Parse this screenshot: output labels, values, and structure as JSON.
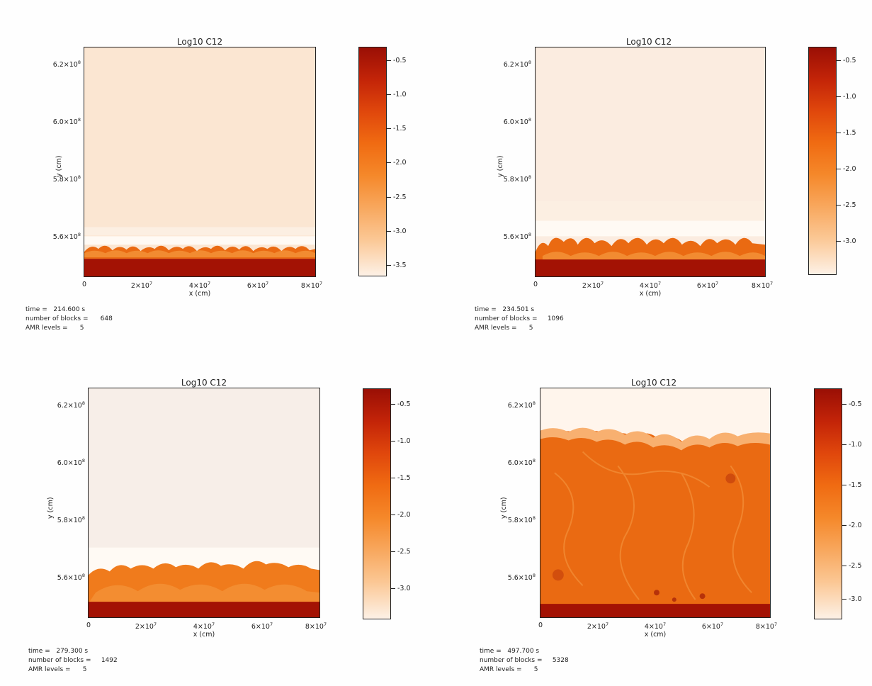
{
  "panels": [
    {
      "title": "Log10 C12",
      "y_ticks": [
        {
          "m": "6.2",
          "e": "8"
        },
        {
          "m": "6.0",
          "e": "8"
        },
        {
          "m": "5.8",
          "e": "8"
        },
        {
          "m": "5.6",
          "e": "8"
        }
      ],
      "x_ticks": [
        {
          "m": "0",
          "e": ""
        },
        {
          "m": "2",
          "e": "7"
        },
        {
          "m": "4",
          "e": "7"
        },
        {
          "m": "6",
          "e": "7"
        },
        {
          "m": "8",
          "e": "7"
        }
      ],
      "xlabel": "x (cm)",
      "ylabel": "y (cm)",
      "cbar_ticks": [
        "-0.5",
        "-1.0",
        "-1.5",
        "-2.0",
        "-2.5",
        "-3.0",
        "-3.5"
      ],
      "info": {
        "time_label": "time =",
        "time_value": "214.600 s",
        "blocks_label": "number of blocks =",
        "blocks_value": "648",
        "amr_label": "AMR levels =",
        "amr_value": "5"
      }
    },
    {
      "title": "Log10 C12",
      "y_ticks": [
        {
          "m": "6.2",
          "e": "8"
        },
        {
          "m": "6.0",
          "e": "8"
        },
        {
          "m": "5.8",
          "e": "8"
        },
        {
          "m": "5.6",
          "e": "8"
        }
      ],
      "x_ticks": [
        {
          "m": "0",
          "e": ""
        },
        {
          "m": "2",
          "e": "7"
        },
        {
          "m": "4",
          "e": "7"
        },
        {
          "m": "6",
          "e": "7"
        },
        {
          "m": "8",
          "e": "7"
        }
      ],
      "xlabel": "x (cm)",
      "ylabel": "y (cm)",
      "cbar_ticks": [
        "-0.5",
        "-1.0",
        "-1.5",
        "-2.0",
        "-2.5",
        "-3.0"
      ],
      "info": {
        "time_label": "time =",
        "time_value": "234.501 s",
        "blocks_label": "number of blocks =",
        "blocks_value": "1096",
        "amr_label": "AMR levels =",
        "amr_value": "5"
      }
    },
    {
      "title": "Log10 C12",
      "y_ticks": [
        {
          "m": "6.2",
          "e": "8"
        },
        {
          "m": "6.0",
          "e": "8"
        },
        {
          "m": "5.8",
          "e": "8"
        },
        {
          "m": "5.6",
          "e": "8"
        }
      ],
      "x_ticks": [
        {
          "m": "0",
          "e": ""
        },
        {
          "m": "2",
          "e": "7"
        },
        {
          "m": "4",
          "e": "7"
        },
        {
          "m": "6",
          "e": "7"
        },
        {
          "m": "8",
          "e": "7"
        }
      ],
      "xlabel": "x (cm)",
      "ylabel": "y (cm)",
      "cbar_ticks": [
        "-0.5",
        "-1.0",
        "-1.5",
        "-2.0",
        "-2.5",
        "-3.0"
      ],
      "info": {
        "time_label": "time =",
        "time_value": "279.300 s",
        "blocks_label": "number of blocks =",
        "blocks_value": "1492",
        "amr_label": "AMR levels =",
        "amr_value": "5"
      }
    },
    {
      "title": "Log10 C12",
      "y_ticks": [
        {
          "m": "6.2",
          "e": "8"
        },
        {
          "m": "6.0",
          "e": "8"
        },
        {
          "m": "5.8",
          "e": "8"
        },
        {
          "m": "5.6",
          "e": "8"
        }
      ],
      "x_ticks": [
        {
          "m": "0",
          "e": ""
        },
        {
          "m": "2",
          "e": "7"
        },
        {
          "m": "4",
          "e": "7"
        },
        {
          "m": "6",
          "e": "7"
        },
        {
          "m": "8",
          "e": "7"
        }
      ],
      "xlabel": "x (cm)",
      "ylabel": "y (cm)",
      "cbar_ticks": [
        "-0.5",
        "-1.0",
        "-1.5",
        "-2.0",
        "-2.5",
        "-3.0"
      ],
      "info": {
        "time_label": "time =",
        "time_value": "497.700 s",
        "blocks_label": "number of blocks =",
        "blocks_value": "5328",
        "amr_label": "AMR levels =",
        "amr_value": "5"
      }
    }
  ],
  "colors": {
    "dark_red": "#a31204",
    "orange": "#ea6a12",
    "light_orange": "#f59a3f",
    "cream": "#fbe6d2",
    "pale": "#f7eee8",
    "white": "#fffaf4"
  }
}
